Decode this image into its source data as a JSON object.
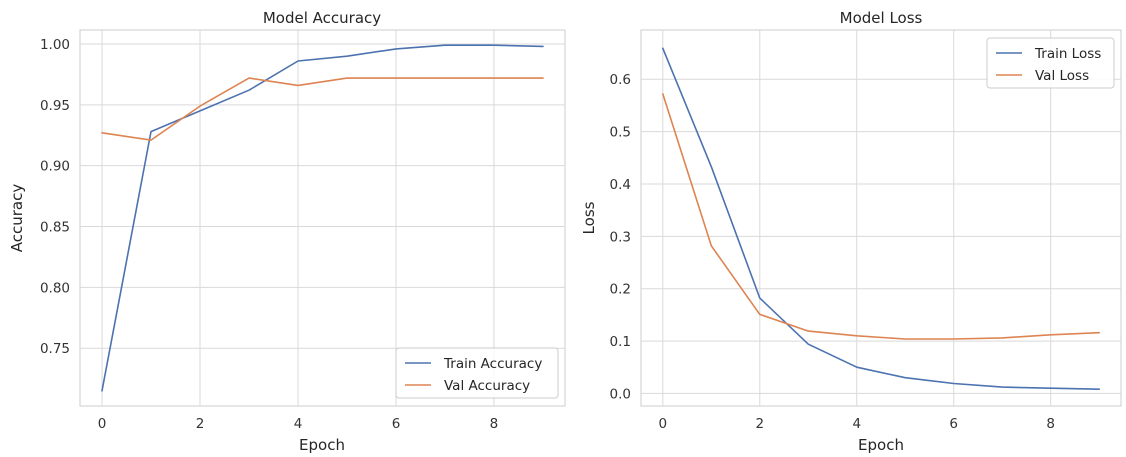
{
  "chart_data": [
    {
      "type": "line",
      "title": "Model Accuracy",
      "xlabel": "Epoch",
      "ylabel": "Accuracy",
      "x": [
        0,
        1,
        2,
        3,
        4,
        5,
        6,
        7,
        8,
        9
      ],
      "xlim": [
        -0.45,
        9.45
      ],
      "ylim": [
        0.7025,
        1.0115
      ],
      "xticks": [
        0,
        2,
        4,
        6,
        8
      ],
      "yticks": [
        0.75,
        0.8,
        0.85,
        0.9,
        0.95,
        1.0
      ],
      "ytick_labels": [
        "0.75",
        "0.80",
        "0.85",
        "0.90",
        "0.95",
        "1.00"
      ],
      "grid": true,
      "legend_position": "lower-right",
      "series": [
        {
          "name": "Train Accuracy",
          "color": "#4c72b0",
          "values": [
            0.715,
            0.928,
            0.945,
            0.962,
            0.986,
            0.99,
            0.996,
            0.999,
            0.999,
            0.998
          ]
        },
        {
          "name": "Val Accuracy",
          "color": "#dd8452",
          "values": [
            0.927,
            0.921,
            0.949,
            0.972,
            0.966,
            0.972,
            0.972,
            0.972,
            0.972,
            0.972
          ]
        }
      ]
    },
    {
      "type": "line",
      "title": "Model Loss",
      "xlabel": "Epoch",
      "ylabel": "Loss",
      "x": [
        0,
        1,
        2,
        3,
        4,
        5,
        6,
        7,
        8,
        9
      ],
      "xlim": [
        -0.45,
        9.45
      ],
      "ylim": [
        -0.024,
        0.694
      ],
      "xticks": [
        0,
        2,
        4,
        6,
        8
      ],
      "yticks": [
        0.0,
        0.1,
        0.2,
        0.3,
        0.4,
        0.5,
        0.6
      ],
      "ytick_labels": [
        "0.0",
        "0.1",
        "0.2",
        "0.3",
        "0.4",
        "0.5",
        "0.6"
      ],
      "grid": true,
      "legend_position": "upper-right",
      "series": [
        {
          "name": "Train Loss",
          "color": "#4c72b0",
          "values": [
            0.659,
            0.433,
            0.182,
            0.094,
            0.05,
            0.03,
            0.019,
            0.012,
            0.01,
            0.008
          ]
        },
        {
          "name": "Val Loss",
          "color": "#dd8452",
          "values": [
            0.572,
            0.282,
            0.151,
            0.119,
            0.11,
            0.104,
            0.104,
            0.106,
            0.112,
            0.116
          ]
        }
      ]
    }
  ]
}
